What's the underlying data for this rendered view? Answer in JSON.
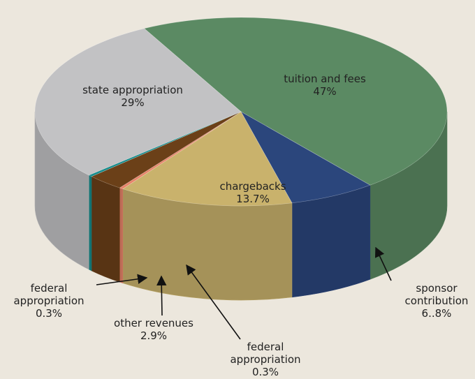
{
  "chart_data": {
    "type": "pie",
    "categories": [
      "tuition and fees",
      "sponsor contribution",
      "chargebacks",
      "federal appropriation",
      "other revenues",
      "federal appropriation",
      "state appropriation"
    ],
    "values": [
      47,
      6.8,
      13.7,
      0.3,
      2.9,
      0.3,
      29
    ],
    "value_labels": [
      "47%",
      "6..8%",
      "13.7%",
      "0.3%",
      "2.9%",
      "0.3%",
      "29%"
    ],
    "colors": [
      "#5b8a63",
      "#2b467c",
      "#c9b26c",
      "#e8846a",
      "#6b4018",
      "#168c8c",
      "#c2c2c4"
    ]
  }
}
